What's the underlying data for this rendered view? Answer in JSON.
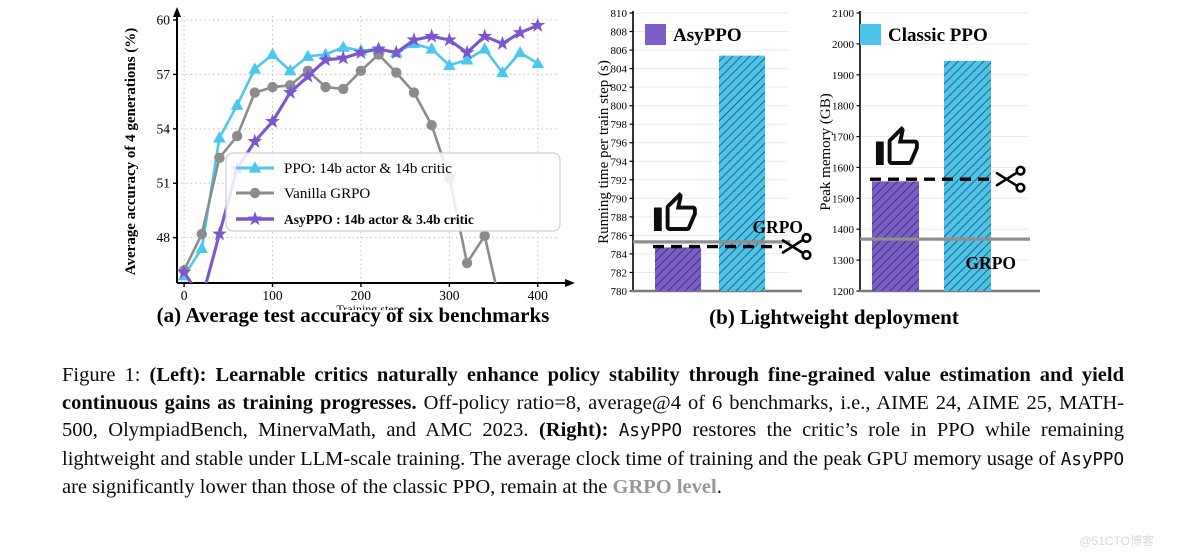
{
  "page": {
    "watermark": "@51CTO博客"
  },
  "figure": {
    "caption_a": "(a) Average test accuracy of six benchmarks",
    "caption_b": "(b) Lightweight deployment"
  },
  "chart_data": [
    {
      "type": "line",
      "title": "",
      "xlabel": "Training step",
      "ylabel": "Average accuracy of 4 generations (%)",
      "xlim": [
        -8,
        424
      ],
      "ylim": [
        45.5,
        60
      ],
      "xticks": [
        0,
        100,
        200,
        300,
        400
      ],
      "yticks": [
        48,
        51,
        54,
        57,
        60
      ],
      "grid": "dotted",
      "legend_position": "inside-center-right",
      "x": [
        0,
        20,
        40,
        60,
        80,
        100,
        120,
        140,
        160,
        180,
        200,
        220,
        240,
        260,
        280,
        300,
        320,
        340,
        360,
        380,
        400
      ],
      "series": [
        {
          "name": "PPO: 14b actor & 14b critic",
          "color": "#4cc7ee",
          "marker": "triangle",
          "bold": false,
          "values": [
            45.9,
            47.4,
            53.5,
            55.3,
            57.3,
            58.1,
            57.2,
            58.0,
            58.1,
            58.5,
            58.3,
            58.4,
            58.2,
            58.7,
            58.4,
            57.5,
            57.8,
            58.4,
            57.1,
            58.2,
            57.6
          ]
        },
        {
          "name": "Vanilla GRPO",
          "color": "#8c8c8c",
          "marker": "circle",
          "bold": false,
          "values": [
            46.2,
            48.2,
            52.4,
            53.6,
            56.0,
            56.3,
            56.4,
            57.2,
            56.3,
            56.2,
            57.2,
            58.1,
            57.1,
            56.0,
            54.2,
            51.3,
            46.6,
            48.1,
            43.8,
            null,
            null
          ]
        },
        {
          "name": "AsyPPO :  14b actor & 3.4b critic",
          "color": "#7b57cd",
          "marker": "star",
          "bold": true,
          "values": [
            46.1,
            44.6,
            48.2,
            51.8,
            53.3,
            54.4,
            56.0,
            56.9,
            57.8,
            57.9,
            58.2,
            58.4,
            58.2,
            58.9,
            59.1,
            58.9,
            58.2,
            59.1,
            58.7,
            59.3,
            59.7
          ]
        }
      ]
    },
    {
      "type": "bar",
      "ylabel": "Running time per train step (s)",
      "ylim": [
        780,
        810
      ],
      "ytick_step": 2,
      "categories": [
        "AsyPPO",
        "Classic PPO"
      ],
      "values": [
        784.7,
        805.4
      ],
      "bar_colors": [
        "#7d5ec8",
        "#4cc3e8"
      ],
      "legend": {
        "label": "AsyPPO",
        "color": "#7d5ec8"
      },
      "grpo_line": {
        "label": "GRPO",
        "value": 785.3
      },
      "cut_line_value": 784.8,
      "annotations": [
        "thumbs-up-icon",
        "scissors-icon"
      ]
    },
    {
      "type": "bar",
      "ylabel": "Peak memory (GB)",
      "ylim": [
        1200,
        2100
      ],
      "ytick_step": 100,
      "categories": [
        "AsyPPO",
        "Classic PPO"
      ],
      "values": [
        1555,
        1945
      ],
      "bar_colors": [
        "#7d5ec8",
        "#4cc3e8"
      ],
      "legend": {
        "label": "Classic PPO",
        "color": "#4cc3e8"
      },
      "grpo_line": {
        "label": "GRPO",
        "value": 1368
      },
      "cut_line_value": 1562,
      "annotations": [
        "thumbs-up-icon",
        "scissors-icon"
      ]
    }
  ],
  "caption": {
    "segments": [
      {
        "t": "Figure 1: ",
        "s": "r"
      },
      {
        "t": "(Left): Learnable critics naturally enhance policy stability through fine-grained value estimation and yield continuous gains as training progresses. ",
        "s": "b"
      },
      {
        "t": "Off-policy ratio=8, average@4 of 6 benchmarks, i.e., AIME 24, AIME 25, MATH-500, OlympiadBench, MinervaMath, and AMC 2023.  ",
        "s": "r"
      },
      {
        "t": "(Right): ",
        "s": "b"
      },
      {
        "t": "AsyPPO",
        "s": "m"
      },
      {
        "t": " restores the critic’s role in PPO while remaining lightweight and stable under LLM-scale training. The average clock time of training and the peak GPU memory usage of ",
        "s": "r"
      },
      {
        "t": "AsyPPO",
        "s": "m"
      },
      {
        "t": " are significantly lower than those of the classic PPO, remain at the ",
        "s": "r"
      },
      {
        "t": "GRPO level",
        "s": "bg"
      },
      {
        "t": ".",
        "s": "r"
      }
    ]
  }
}
